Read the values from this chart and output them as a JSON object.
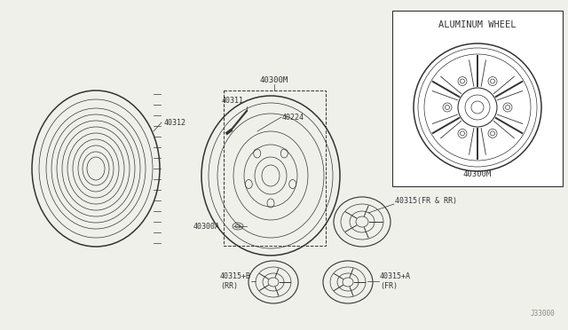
{
  "bg_color": "#f0f0eb",
  "line_color": "#333333",
  "aluminum_wheel_label": "ALUMINUM WHEEL",
  "part_numbers": {
    "tire": "40312",
    "wheel_top": "40300M",
    "valve": "40311",
    "valve_cap": "40224",
    "wheel_body": "40300A",
    "cap_fr_rr": "40315(FR & RR)",
    "cap_b_rr1": "40315+B",
    "cap_b_rr2": "(RR)",
    "cap_a_fr1": "40315+A",
    "cap_a_fr2": "(FR)",
    "al_wheel": "40300M"
  },
  "diagram_ref": "J33000"
}
